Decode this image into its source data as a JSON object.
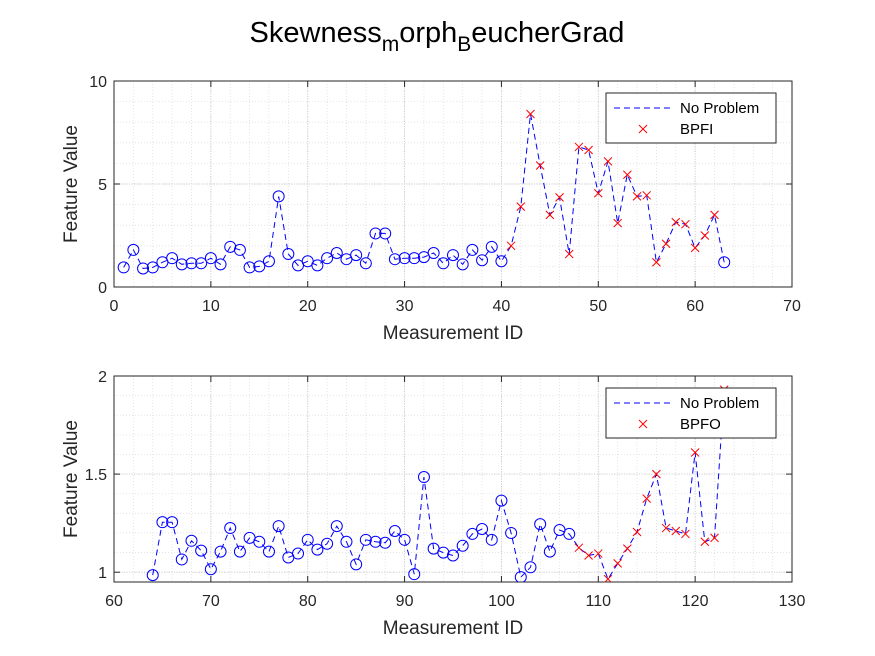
{
  "figure": {
    "title_main": "Skewness",
    "title_sub1": "m",
    "title_mid": "orph",
    "title_sub2": "B",
    "title_end": "eucherGrad"
  },
  "colors": {
    "normal": "#0000ff",
    "fault": "#ff0000",
    "grid": "#dedede",
    "axis": "#262626"
  },
  "chart_data": [
    {
      "type": "line",
      "xlabel": "Measurement ID",
      "ylabel": "Feature Value",
      "xlim": [
        0,
        70
      ],
      "ylim": [
        0,
        10
      ],
      "xticks": [
        0,
        10,
        20,
        30,
        40,
        50,
        60,
        70
      ],
      "yticks": [
        0,
        5,
        10
      ],
      "grid": true,
      "minor_grid": true,
      "legend_position": "top-right",
      "legend": [
        "No Problem",
        "BPFI"
      ],
      "series": [
        {
          "name": "No Problem",
          "style": "dashed-line-circle-markers",
          "x": [
            1,
            2,
            3,
            4,
            5,
            6,
            7,
            8,
            9,
            10,
            11,
            12,
            13,
            14,
            15,
            16,
            17,
            18,
            19,
            20,
            21,
            22,
            23,
            24,
            25,
            26,
            27,
            28,
            29,
            30,
            31,
            32,
            33,
            34,
            35,
            36,
            37,
            38,
            39,
            40,
            41,
            42,
            43,
            44,
            45,
            46,
            47,
            48,
            49,
            50,
            51,
            52,
            53,
            54,
            55,
            56,
            57,
            58,
            59,
            60,
            61,
            62,
            63
          ],
          "y": [
            0.95,
            1.8,
            0.9,
            0.95,
            1.2,
            1.4,
            1.1,
            1.15,
            1.15,
            1.4,
            1.1,
            1.95,
            1.8,
            0.95,
            1.0,
            1.25,
            4.4,
            1.6,
            1.05,
            1.25,
            1.05,
            1.4,
            1.65,
            1.35,
            1.55,
            1.15,
            2.6,
            2.6,
            1.35,
            1.4,
            1.4,
            1.45,
            1.65,
            1.15,
            1.55,
            1.1,
            1.8,
            1.3,
            1.95,
            1.25,
            2.0,
            3.9,
            8.4,
            5.9,
            3.5,
            4.35,
            1.6,
            6.8,
            6.65,
            4.55,
            6.1,
            3.1,
            5.45,
            4.4,
            4.45,
            1.2,
            2.1,
            3.15,
            3.05,
            1.9,
            2.5,
            3.5,
            1.2
          ]
        },
        {
          "name": "BPFI",
          "style": "x-markers",
          "x": [
            41,
            42,
            43,
            44,
            45,
            46,
            47,
            48,
            49,
            50,
            51,
            52,
            53,
            54,
            55,
            56,
            57,
            58,
            59,
            60,
            61,
            62
          ],
          "y": [
            2.0,
            3.9,
            8.4,
            5.9,
            3.5,
            4.35,
            1.6,
            6.8,
            6.65,
            4.55,
            6.1,
            3.1,
            5.45,
            4.4,
            4.45,
            1.2,
            2.1,
            3.15,
            3.05,
            1.9,
            2.5,
            3.5
          ]
        }
      ],
      "circle_marker_x": [
        1,
        2,
        3,
        4,
        5,
        6,
        7,
        8,
        9,
        10,
        11,
        12,
        13,
        14,
        15,
        16,
        17,
        18,
        19,
        20,
        21,
        22,
        23,
        24,
        25,
        26,
        27,
        28,
        29,
        30,
        31,
        32,
        33,
        34,
        35,
        36,
        37,
        38,
        39,
        40,
        63
      ]
    },
    {
      "type": "line",
      "xlabel": "Measurement ID",
      "ylabel": "Feature Value",
      "xlim": [
        60,
        130
      ],
      "ylim": [
        0.95,
        2
      ],
      "xticks": [
        60,
        70,
        80,
        90,
        100,
        110,
        120,
        130
      ],
      "yticks": [
        1,
        1.5,
        2
      ],
      "ytick_labels": [
        "1",
        "1.5",
        "2"
      ],
      "grid": true,
      "minor_grid": true,
      "legend_position": "top-right",
      "legend": [
        "No Problem",
        "BPFO"
      ],
      "series": [
        {
          "name": "No Problem",
          "style": "dashed-line-circle-markers",
          "x": [
            64,
            65,
            66,
            67,
            68,
            69,
            70,
            71,
            72,
            73,
            74,
            75,
            76,
            77,
            78,
            79,
            80,
            81,
            82,
            83,
            84,
            85,
            86,
            87,
            88,
            89,
            90,
            91,
            92,
            93,
            94,
            95,
            96,
            97,
            98,
            99,
            100,
            101,
            102,
            103,
            104,
            105,
            106,
            107,
            108,
            109,
            110,
            111,
            112,
            113,
            114,
            115,
            116,
            117,
            118,
            119,
            120,
            121,
            122,
            123
          ],
          "y": [
            0.985,
            1.255,
            1.255,
            1.065,
            1.16,
            1.11,
            1.015,
            1.105,
            1.225,
            1.105,
            1.175,
            1.155,
            1.105,
            1.235,
            1.075,
            1.095,
            1.165,
            1.115,
            1.145,
            1.235,
            1.155,
            1.04,
            1.165,
            1.155,
            1.15,
            1.21,
            1.165,
            0.99,
            1.485,
            1.12,
            1.1,
            1.085,
            1.135,
            1.195,
            1.22,
            1.165,
            1.365,
            1.2,
            0.975,
            1.025,
            1.245,
            1.105,
            1.215,
            1.195,
            1.125,
            1.085,
            1.095,
            0.965,
            1.045,
            1.12,
            1.205,
            1.375,
            1.5,
            1.225,
            1.21,
            1.195,
            1.61,
            1.155,
            1.175,
            1.93
          ]
        },
        {
          "name": "BPFO",
          "style": "x-markers",
          "x": [
            108,
            109,
            110,
            111,
            112,
            113,
            114,
            115,
            116,
            117,
            118,
            119,
            120,
            121,
            122,
            123
          ],
          "y": [
            1.125,
            1.085,
            1.095,
            0.965,
            1.045,
            1.12,
            1.205,
            1.375,
            1.5,
            1.225,
            1.21,
            1.195,
            1.61,
            1.155,
            1.175,
            1.93
          ]
        }
      ],
      "circle_marker_x": [
        64,
        65,
        66,
        67,
        68,
        69,
        70,
        71,
        72,
        73,
        74,
        75,
        76,
        77,
        78,
        79,
        80,
        81,
        82,
        83,
        84,
        85,
        86,
        87,
        88,
        89,
        90,
        91,
        92,
        93,
        94,
        95,
        96,
        97,
        98,
        99,
        100,
        101,
        102,
        103,
        104,
        105,
        106,
        107
      ]
    }
  ]
}
